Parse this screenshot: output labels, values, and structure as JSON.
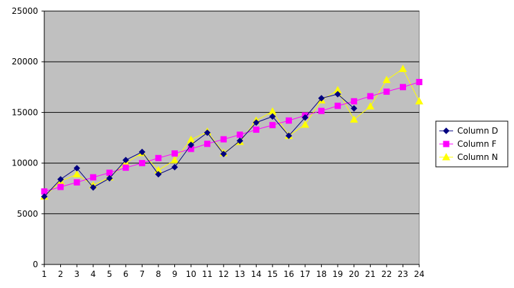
{
  "chart_data": {
    "type": "line",
    "title": "",
    "xlabel": "",
    "ylabel": "",
    "categories": [
      "1",
      "2",
      "3",
      "4",
      "5",
      "6",
      "7",
      "8",
      "9",
      "10",
      "11",
      "12",
      "13",
      "14",
      "15",
      "16",
      "17",
      "18",
      "19",
      "20",
      "21",
      "22",
      "23",
      "24"
    ],
    "ylim": [
      0,
      25000
    ],
    "yticks": [
      0,
      5000,
      10000,
      15000,
      20000,
      25000
    ],
    "grid": true,
    "background": "#c0c0c0",
    "legend_position": "right",
    "series": [
      {
        "name": "Column D",
        "color": "#000080",
        "marker": "diamond",
        "values": [
          6700,
          8400,
          9500,
          7600,
          8500,
          10300,
          11100,
          8900,
          9600,
          11800,
          13000,
          10900,
          12200,
          14000,
          14600,
          12700,
          14500,
          16400,
          16800,
          15400,
          null,
          null,
          null,
          null
        ]
      },
      {
        "name": "Column F",
        "color": "#ff00ff",
        "marker": "square",
        "values": [
          7200,
          7650,
          8100,
          8600,
          9050,
          9550,
          10000,
          10500,
          10950,
          11400,
          11900,
          12350,
          12800,
          13300,
          13750,
          14200,
          14700,
          15150,
          15650,
          16100,
          16600,
          17050,
          17500,
          18000
        ]
      },
      {
        "name": "Column N",
        "color": "#ffff00",
        "marker": "triangle",
        "values": [
          6700,
          8200,
          8900,
          7800,
          8600,
          10000,
          11000,
          9300,
          10300,
          12300,
          13100,
          11000,
          12100,
          14200,
          15100,
          12700,
          13800,
          16200,
          17200,
          14300,
          15600,
          18200,
          19300,
          16100
        ]
      }
    ]
  }
}
